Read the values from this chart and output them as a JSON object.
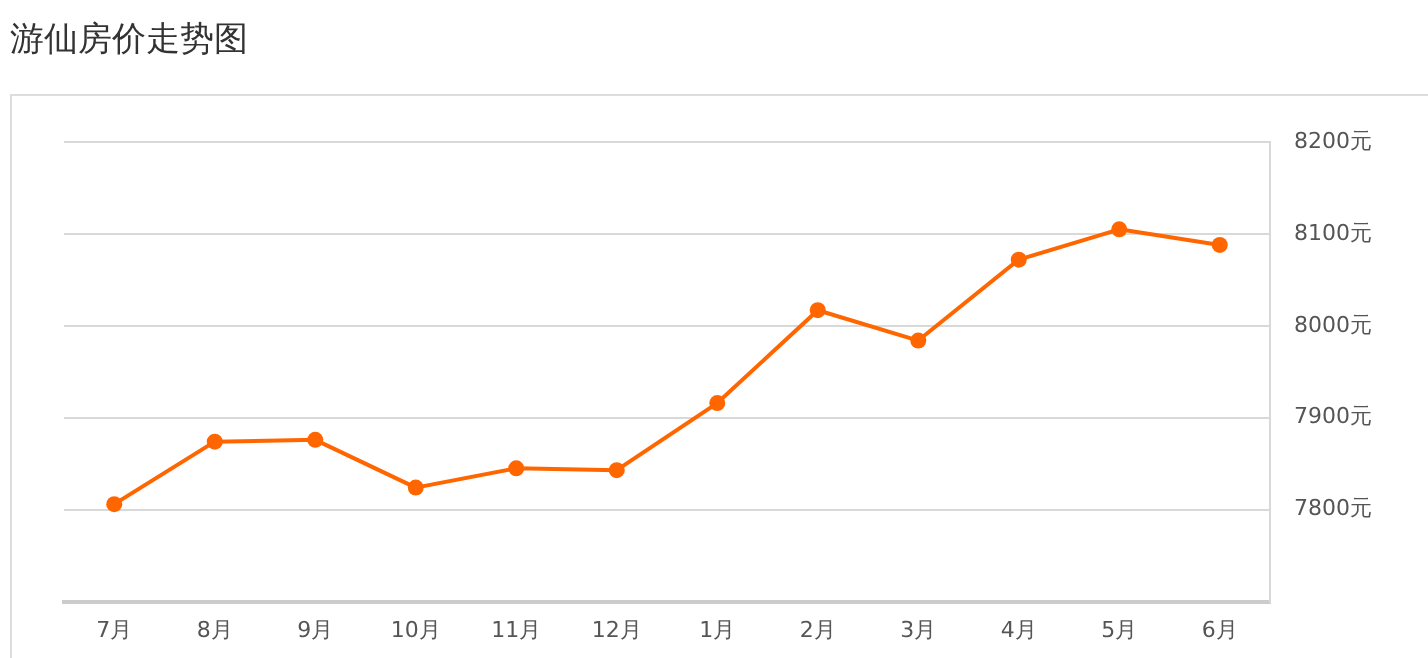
{
  "chart_data": {
    "type": "line",
    "title": "游仙房价走势图",
    "categories": [
      "7月",
      "8月",
      "9月",
      "10月",
      "11月",
      "12月",
      "1月",
      "2月",
      "3月",
      "4月",
      "5月",
      "6月"
    ],
    "series": [
      {
        "color": "#ff6600",
        "values": [
          7806,
          7874,
          7876,
          7824,
          7845,
          7843,
          7916,
          8017,
          7984,
          8072,
          8105,
          8088
        ]
      }
    ],
    "ylim": [
      7700,
      8200
    ],
    "yticks": [
      {
        "value": 7700,
        "label": null
      },
      {
        "value": 7800,
        "label": "7800元"
      },
      {
        "value": 7900,
        "label": "7900元"
      },
      {
        "value": 8000,
        "label": "8000元"
      },
      {
        "value": 8100,
        "label": "8100元"
      },
      {
        "value": 8200,
        "label": "8200元"
      }
    ],
    "grid": "y",
    "legend": false,
    "marker": "circle",
    "line_style": "solid"
  }
}
